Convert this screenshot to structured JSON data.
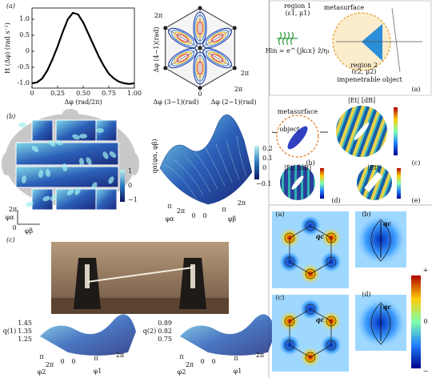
{
  "panel_a": {
    "label": "(a)",
    "plot": {
      "type": "line",
      "color": "#000000",
      "x": [
        0,
        0.05,
        0.1,
        0.15,
        0.2,
        0.25,
        0.3,
        0.35,
        0.4,
        0.45,
        0.5,
        0.55,
        0.6,
        0.65,
        0.7,
        0.75,
        0.8,
        0.85,
        0.9,
        0.95,
        1.0
      ],
      "values": [
        -1.0,
        -0.97,
        -0.85,
        -0.6,
        -0.25,
        0.15,
        0.6,
        1.0,
        1.2,
        1.15,
        0.9,
        0.55,
        0.2,
        -0.15,
        -0.45,
        -0.7,
        -0.85,
        -0.95,
        -1.0,
        -1.02,
        -1.0
      ],
      "xlim": [
        0,
        1
      ],
      "ylim": [
        -1.15,
        1.35
      ],
      "xticks": [
        0,
        0.25,
        {
          "value": 0.5,
          "label": "0.50"
        },
        0.75,
        {
          "value": 1,
          "label": "1.00"
        }
      ],
      "yticks": [
        {
          "value": -1,
          "label": "-1.0"
        },
        -0.5,
        0,
        0.5,
        {
          "value": 1,
          "label": "1.0"
        }
      ],
      "xlabel": "Δφ (rad/2π)",
      "ylabel": "H (Δφ) (rad s⁻¹)"
    },
    "polytope_labels": [
      "2π",
      "2π",
      "2π",
      "0",
      "Δφ (4−1)(rad)",
      "Δφ (3−1)(rad)",
      "Δφ (2−1)(rad)"
    ]
  },
  "panel_b": {
    "label": "(b)",
    "colorbar": [
      "1",
      "0",
      "−1"
    ],
    "axes": [
      "2π",
      "φα",
      "0",
      "φβ"
    ],
    "surface_colorbar": [
      "0.2",
      "0.1",
      "0",
      "−0.1"
    ],
    "zlabel": "qα(φα, φβ)",
    "surface_axes": [
      "π",
      "2π",
      "0",
      "0",
      "π",
      "2π",
      "φα",
      "φβ"
    ]
  },
  "panel_c": {
    "label": "(c)",
    "left": {
      "zticks": [
        "1.45",
        "1.35",
        "1.25"
      ],
      "zlabel": "q(1)",
      "axes": [
        "π",
        "2π",
        "0",
        "0",
        "π",
        "2π",
        "φ2",
        "φ1"
      ]
    },
    "right": {
      "zticks": [
        "0.89",
        "0.82",
        "0.75"
      ],
      "zlabel": "q(2)",
      "axes": [
        "π",
        "2π",
        "0",
        "0",
        "π",
        "2π",
        "φ2",
        "φ1"
      ]
    }
  },
  "right_top": {
    "texts": [
      "region 1",
      "(ε1, μ1)",
      "metasurface",
      "region 2",
      "(ε2, μ2)",
      "impenetrable object",
      "(a)",
      "Hin = e^{jk₁x} ẑ/η₁"
    ]
  },
  "right_middle": {
    "texts": [
      "metasurface",
      "object",
      "(b)",
      "(c)",
      "(d)",
      "(e)",
      "|Et| [dB]",
      "|Et| [dB]",
      "|Et|²"
    ]
  },
  "right_bottom": {
    "labels": [
      "(a)",
      "(b)",
      "(c)",
      "(d)"
    ],
    "qc": [
      "qc",
      "qc",
      "qc",
      "qc"
    ],
    "colorbar": [
      "+",
      "0",
      "−"
    ]
  }
}
